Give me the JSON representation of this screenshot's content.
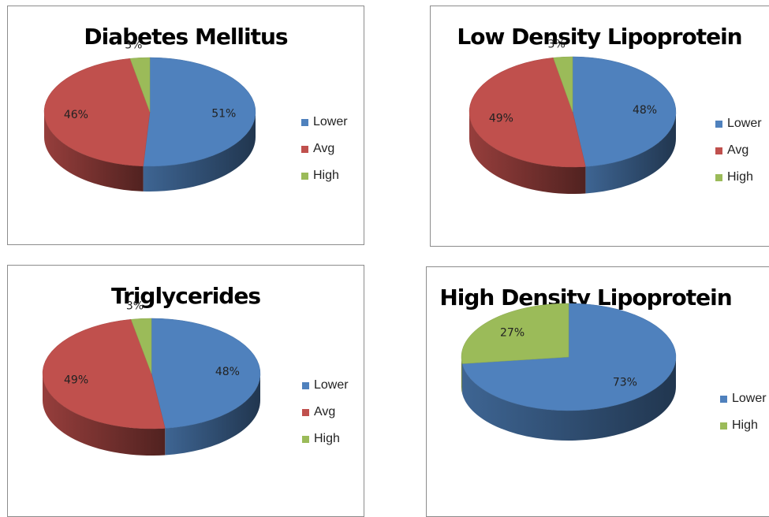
{
  "colors": {
    "Lower": "#4F81BD",
    "Avg": "#C0504D",
    "High": "#9BBB59"
  },
  "chart_data": [
    {
      "type": "pie",
      "title": "Diabetes Mellitus",
      "categories": [
        "Lower",
        "Avg",
        "High"
      ],
      "values": [
        51,
        46,
        3
      ],
      "data_labels": [
        "51%",
        "46%",
        "3%"
      ],
      "legend": [
        "Lower",
        "Avg",
        "High"
      ],
      "legend_position": "right"
    },
    {
      "type": "pie",
      "title": "Low Density Lipoprotein",
      "categories": [
        "Lower",
        "Avg",
        "High"
      ],
      "values": [
        48,
        49,
        3
      ],
      "data_labels": [
        "48%",
        "49%",
        "3%"
      ],
      "legend": [
        "Lower",
        "Avg",
        "High"
      ],
      "legend_position": "right"
    },
    {
      "type": "pie",
      "title": "Triglycerides",
      "categories": [
        "Lower",
        "Avg",
        "High"
      ],
      "values": [
        48,
        49,
        3
      ],
      "data_labels": [
        "48%",
        "49%",
        "3%"
      ],
      "legend": [
        "Lower",
        "Avg",
        "High"
      ],
      "legend_position": "right"
    },
    {
      "type": "pie",
      "title": "High Density Lipoprotein",
      "categories": [
        "Lower",
        "High"
      ],
      "values": [
        73,
        27
      ],
      "data_labels": [
        "73%",
        "27%"
      ],
      "legend": [
        "Lower",
        "High"
      ],
      "legend_position": "right"
    }
  ]
}
